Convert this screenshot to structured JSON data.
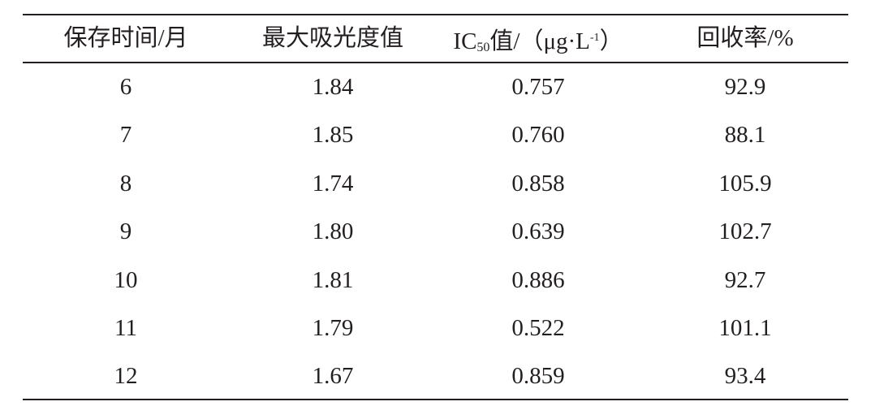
{
  "table": {
    "header": [
      "保存时间/月",
      "最大吸光度值",
      {
        "main": "IC",
        "sub": "50",
        "mid": "值/（μg·L",
        "sup": "-1",
        "end": "）"
      },
      "回收率/%"
    ],
    "rows": [
      [
        "6",
        "1.84",
        "0.757",
        "92.9"
      ],
      [
        "7",
        "1.85",
        "0.760",
        "88.1"
      ],
      [
        "8",
        "1.74",
        "0.858",
        "105.9"
      ],
      [
        "9",
        "1.80",
        "0.639",
        "102.7"
      ],
      [
        "10",
        "1.81",
        "0.886",
        "92.7"
      ],
      [
        "11",
        "1.79",
        "0.522",
        "101.1"
      ],
      [
        "12",
        "1.67",
        "0.859",
        "93.4"
      ]
    ]
  }
}
